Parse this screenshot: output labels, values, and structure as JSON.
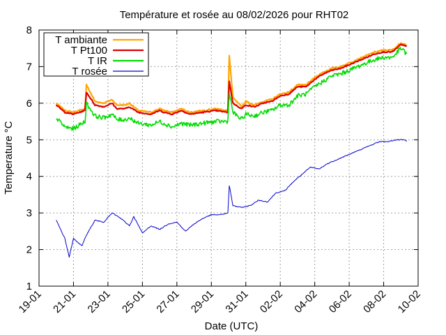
{
  "chart_data": {
    "type": "line",
    "title": "Température et rosée au 08/02/2026 pour RHT02",
    "xlabel": "Date (UTC)",
    "ylabel": "Temperature °C",
    "xlim": [
      "2026-01-19",
      "2026-02-10"
    ],
    "ylim": [
      1,
      8
    ],
    "grid": true,
    "legend_position": "top-left",
    "x_tick_labels": [
      "19-01",
      "21-01",
      "23-01",
      "25-01",
      "27-01",
      "29-01",
      "31-01",
      "02-02",
      "04-02",
      "06-02",
      "08-02",
      "10-02"
    ],
    "y_tick_labels": [
      "1",
      "2",
      "3",
      "4",
      "5",
      "6",
      "7",
      "8"
    ],
    "series": [
      {
        "name": "T ambiante",
        "color": "#ffa500",
        "x": [
          "2026-01-20 00:00",
          "2026-01-20 12:00",
          "2026-01-21 00:00",
          "2026-01-21 16:00",
          "2026-01-21 18:00",
          "2026-01-22 06:00",
          "2026-01-22 18:00",
          "2026-01-23 06:00",
          "2026-01-23 12:00",
          "2026-01-24 00:00",
          "2026-01-24 06:00",
          "2026-01-24 18:00",
          "2026-01-25 12:00",
          "2026-01-26 00:00",
          "2026-01-26 06:00",
          "2026-01-26 18:00",
          "2026-01-27 06:00",
          "2026-01-27 18:00",
          "2026-01-28 12:00",
          "2026-01-29 06:00",
          "2026-01-29 23:00",
          "2026-01-30 01:00",
          "2026-01-30 06:00",
          "2026-01-30 18:00",
          "2026-01-31 00:00",
          "2026-01-31 12:00",
          "2026-02-01 00:00",
          "2026-02-01 12:00",
          "2026-02-02 00:00",
          "2026-02-02 12:00",
          "2026-02-03 00:00",
          "2026-02-03 12:00",
          "2026-02-04 00:00",
          "2026-02-04 12:00",
          "2026-02-05 00:00",
          "2026-02-05 12:00",
          "2026-02-06 00:00",
          "2026-02-06 12:00",
          "2026-02-07 00:00",
          "2026-02-07 12:00",
          "2026-02-08 00:00",
          "2026-02-08 12:00",
          "2026-02-09 00:00",
          "2026-02-09 08:00"
        ],
        "y": [
          6.0,
          5.8,
          5.75,
          5.85,
          6.5,
          6.05,
          6.0,
          6.1,
          5.95,
          5.95,
          6.0,
          5.8,
          5.75,
          5.85,
          5.8,
          5.75,
          5.85,
          5.75,
          5.8,
          5.85,
          5.8,
          7.3,
          6.15,
          5.9,
          6.05,
          5.95,
          6.05,
          6.1,
          6.25,
          6.3,
          6.5,
          6.5,
          6.7,
          6.85,
          6.95,
          7.0,
          7.1,
          7.2,
          7.3,
          7.4,
          7.45,
          7.45,
          7.65,
          7.6
        ]
      },
      {
        "name": "T Pt100",
        "color": "#dd0000",
        "x": [
          "2026-01-20 00:00",
          "2026-01-20 12:00",
          "2026-01-21 00:00",
          "2026-01-21 16:00",
          "2026-01-21 18:00",
          "2026-01-22 06:00",
          "2026-01-22 18:00",
          "2026-01-23 06:00",
          "2026-01-23 12:00",
          "2026-01-24 00:00",
          "2026-01-24 06:00",
          "2026-01-24 18:00",
          "2026-01-25 12:00",
          "2026-01-26 00:00",
          "2026-01-26 06:00",
          "2026-01-26 18:00",
          "2026-01-27 06:00",
          "2026-01-27 18:00",
          "2026-01-28 12:00",
          "2026-01-29 06:00",
          "2026-01-29 23:00",
          "2026-01-30 01:00",
          "2026-01-30 06:00",
          "2026-01-30 18:00",
          "2026-01-31 00:00",
          "2026-01-31 12:00",
          "2026-02-01 00:00",
          "2026-02-01 12:00",
          "2026-02-02 00:00",
          "2026-02-02 12:00",
          "2026-02-03 00:00",
          "2026-02-03 12:00",
          "2026-02-04 00:00",
          "2026-02-04 12:00",
          "2026-02-05 00:00",
          "2026-02-05 12:00",
          "2026-02-06 00:00",
          "2026-02-06 12:00",
          "2026-02-07 00:00",
          "2026-02-07 12:00",
          "2026-02-08 00:00",
          "2026-02-08 12:00",
          "2026-02-09 00:00",
          "2026-02-09 08:00"
        ],
        "y": [
          5.95,
          5.75,
          5.7,
          5.8,
          6.3,
          5.95,
          5.9,
          6.0,
          5.85,
          5.85,
          5.9,
          5.75,
          5.7,
          5.8,
          5.75,
          5.7,
          5.8,
          5.7,
          5.75,
          5.8,
          5.75,
          6.6,
          6.0,
          5.85,
          5.95,
          5.9,
          6.0,
          6.05,
          6.2,
          6.25,
          6.45,
          6.45,
          6.65,
          6.8,
          6.9,
          6.95,
          7.05,
          7.15,
          7.25,
          7.35,
          7.4,
          7.4,
          7.6,
          7.55
        ]
      },
      {
        "name": "T IR",
        "color": "#00dd00",
        "x": [
          "2026-01-20 00:00",
          "2026-01-20 12:00",
          "2026-01-21 00:00",
          "2026-01-21 16:00",
          "2026-01-21 18:00",
          "2026-01-22 06:00",
          "2026-01-22 18:00",
          "2026-01-23 06:00",
          "2026-01-23 12:00",
          "2026-01-24 00:00",
          "2026-01-24 06:00",
          "2026-01-24 18:00",
          "2026-01-25 12:00",
          "2026-01-26 00:00",
          "2026-01-26 06:00",
          "2026-01-26 18:00",
          "2026-01-27 06:00",
          "2026-01-27 18:00",
          "2026-01-28 12:00",
          "2026-01-29 06:00",
          "2026-01-29 23:00",
          "2026-01-30 01:00",
          "2026-01-30 06:00",
          "2026-01-30 18:00",
          "2026-01-31 00:00",
          "2026-01-31 12:00",
          "2026-02-01 00:00",
          "2026-02-01 12:00",
          "2026-02-02 00:00",
          "2026-02-02 12:00",
          "2026-02-03 00:00",
          "2026-02-03 12:00",
          "2026-02-04 00:00",
          "2026-02-04 12:00",
          "2026-02-05 00:00",
          "2026-02-05 12:00",
          "2026-02-06 00:00",
          "2026-02-06 12:00",
          "2026-02-07 00:00",
          "2026-02-07 12:00",
          "2026-02-08 00:00",
          "2026-02-08 12:00",
          "2026-02-09 00:00",
          "2026-02-09 08:00"
        ],
        "y": [
          5.6,
          5.35,
          5.3,
          5.5,
          6.0,
          5.65,
          5.6,
          5.7,
          5.55,
          5.55,
          5.6,
          5.45,
          5.4,
          5.5,
          5.45,
          5.35,
          5.45,
          5.4,
          5.45,
          5.5,
          5.5,
          6.3,
          5.75,
          5.55,
          5.7,
          5.65,
          5.75,
          5.8,
          5.95,
          5.95,
          6.2,
          6.25,
          6.45,
          6.6,
          6.75,
          6.8,
          6.9,
          7.0,
          7.1,
          7.2,
          7.25,
          7.25,
          7.5,
          7.35
        ]
      },
      {
        "name": "T rosée",
        "color": "#0000cc",
        "x": [
          "2026-01-20 00:00",
          "2026-01-20 12:00",
          "2026-01-20 18:00",
          "2026-01-21 00:00",
          "2026-01-21 12:00",
          "2026-01-21 18:00",
          "2026-01-22 06:00",
          "2026-01-22 18:00",
          "2026-01-23 06:00",
          "2026-01-23 18:00",
          "2026-01-24 06:00",
          "2026-01-24 12:00",
          "2026-01-25 00:00",
          "2026-01-25 12:00",
          "2026-01-26 00:00",
          "2026-01-26 12:00",
          "2026-01-27 00:00",
          "2026-01-27 12:00",
          "2026-01-28 00:00",
          "2026-01-28 12:00",
          "2026-01-29 00:00",
          "2026-01-29 12:00",
          "2026-01-29 23:00",
          "2026-01-30 01:00",
          "2026-01-30 06:00",
          "2026-01-30 18:00",
          "2026-01-31 06:00",
          "2026-01-31 18:00",
          "2026-02-01 06:00",
          "2026-02-01 18:00",
          "2026-02-02 06:00",
          "2026-02-02 18:00",
          "2026-02-03 06:00",
          "2026-02-03 18:00",
          "2026-02-04 06:00",
          "2026-02-04 18:00",
          "2026-02-05 06:00",
          "2026-02-05 18:00",
          "2026-02-06 06:00",
          "2026-02-06 18:00",
          "2026-02-07 06:00",
          "2026-02-07 18:00",
          "2026-02-08 06:00",
          "2026-02-08 18:00",
          "2026-02-09 06:00",
          "2026-02-09 08:00"
        ],
        "y": [
          2.8,
          2.3,
          1.8,
          2.3,
          2.1,
          2.4,
          2.8,
          2.75,
          3.0,
          2.85,
          2.65,
          2.9,
          2.45,
          2.65,
          2.55,
          2.7,
          2.75,
          2.5,
          2.7,
          2.85,
          2.95,
          2.95,
          3.0,
          3.75,
          3.2,
          3.15,
          3.2,
          3.35,
          3.3,
          3.55,
          3.6,
          3.85,
          4.05,
          4.25,
          4.2,
          4.35,
          4.45,
          4.55,
          4.65,
          4.75,
          4.85,
          4.95,
          4.95,
          5.0,
          5.0,
          4.95
        ]
      }
    ]
  }
}
